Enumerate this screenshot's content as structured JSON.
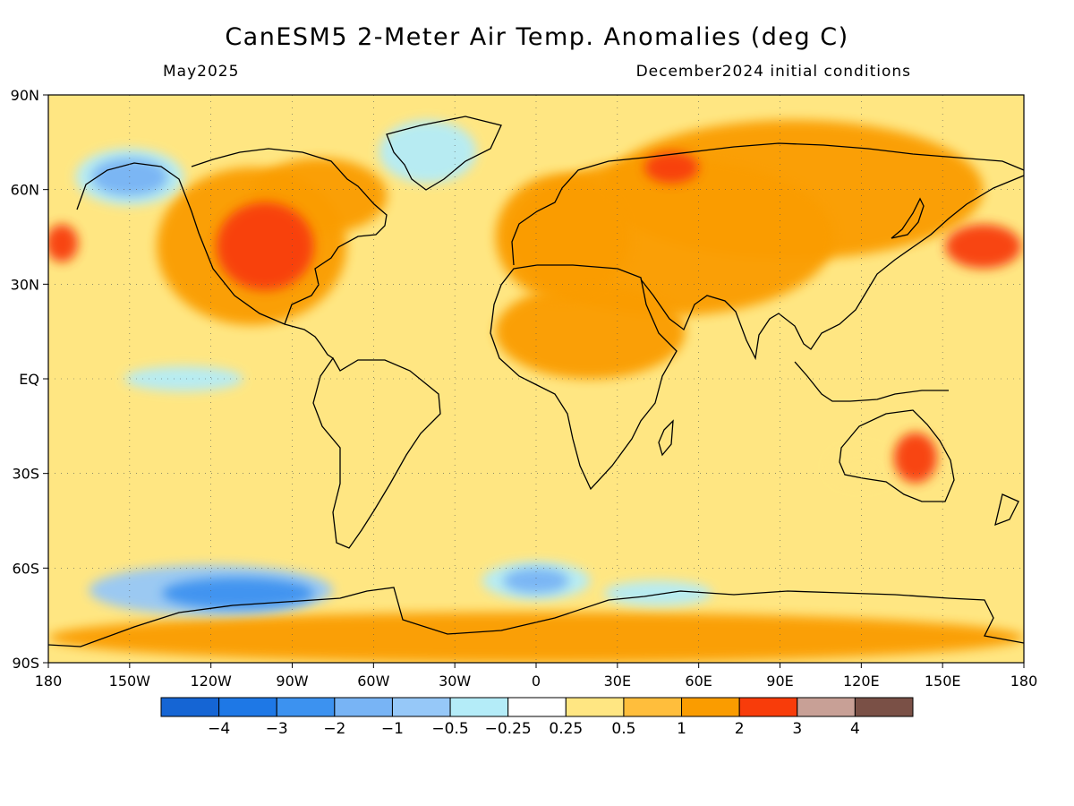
{
  "title": "CanESM5 2-Meter Air Temp. Anomalies (deg C)",
  "valid_month": "May2025",
  "init_conditions": "December2024 initial conditions",
  "chart_data": {
    "type": "heatmap",
    "variable": "2-Meter Air Temperature Anomaly",
    "units": "deg C",
    "projection": "equirectangular",
    "lon_range": [
      -180,
      180
    ],
    "lat_range": [
      -90,
      90
    ],
    "x_ticks": [
      {
        "value": -180,
        "label": "180"
      },
      {
        "value": -150,
        "label": "150W"
      },
      {
        "value": -120,
        "label": "120W"
      },
      {
        "value": -90,
        "label": "90W"
      },
      {
        "value": -60,
        "label": "60W"
      },
      {
        "value": -30,
        "label": "30W"
      },
      {
        "value": 0,
        "label": "0"
      },
      {
        "value": 30,
        "label": "30E"
      },
      {
        "value": 60,
        "label": "60E"
      },
      {
        "value": 90,
        "label": "90E"
      },
      {
        "value": 120,
        "label": "120E"
      },
      {
        "value": 150,
        "label": "150E"
      },
      {
        "value": 180,
        "label": "180"
      }
    ],
    "y_ticks": [
      {
        "value": 90,
        "label": "90N"
      },
      {
        "value": 60,
        "label": "60N"
      },
      {
        "value": 30,
        "label": "30N"
      },
      {
        "value": 0,
        "label": "EQ"
      },
      {
        "value": -30,
        "label": "30S"
      },
      {
        "value": -60,
        "label": "60S"
      },
      {
        "value": -90,
        "label": "90S"
      }
    ],
    "grid": true,
    "colorbar": {
      "colors": [
        "#1565d4",
        "#1e78e6",
        "#3c92f0",
        "#78b4f5",
        "#96c8f8",
        "#b4ecf8",
        "#ffffff",
        "#ffe682",
        "#ffbe3c",
        "#fa9c00",
        "#f83c0a",
        "#c8a096",
        "#7a5046"
      ],
      "labels": [
        "−4",
        "−3",
        "−2",
        "−1",
        "−0.5",
        "−0.25",
        "0.25",
        "0.5",
        "1",
        "2",
        "3",
        "4"
      ]
    },
    "anomaly_regions": [
      {
        "lon": -100,
        "lat": 42,
        "rx": 18,
        "ry": 14,
        "value": 2.5
      },
      {
        "lon": -105,
        "lat": 42,
        "rx": 35,
        "ry": 25,
        "value": 1.5
      },
      {
        "lon": -80,
        "lat": 58,
        "rx": 25,
        "ry": 12,
        "value": 1.5
      },
      {
        "lon": -40,
        "lat": 72,
        "rx": 18,
        "ry": 10,
        "value": -0.4
      },
      {
        "lon": -150,
        "lat": 64,
        "rx": 14,
        "ry": 6,
        "value": -1.5
      },
      {
        "lon": -150,
        "lat": 64,
        "rx": 20,
        "ry": 9,
        "value": -0.5
      },
      {
        "lon": 50,
        "lat": 45,
        "rx": 60,
        "ry": 25,
        "value": 1.5
      },
      {
        "lon": 95,
        "lat": 60,
        "rx": 70,
        "ry": 22,
        "value": 1.5
      },
      {
        "lon": 50,
        "lat": 67,
        "rx": 10,
        "ry": 5,
        "value": 2.5
      },
      {
        "lon": 165,
        "lat": 42,
        "rx": 14,
        "ry": 7,
        "value": 2.5
      },
      {
        "lon": -175,
        "lat": 43,
        "rx": 6,
        "ry": 6,
        "value": 2.5
      },
      {
        "lon": 10,
        "lat": 45,
        "rx": 25,
        "ry": 20,
        "value": 1.5
      },
      {
        "lon": 20,
        "lat": 15,
        "rx": 35,
        "ry": 15,
        "value": 1.5
      },
      {
        "lon": -110,
        "lat": -68,
        "rx": 28,
        "ry": 5,
        "value": -2.5
      },
      {
        "lon": -120,
        "lat": -67,
        "rx": 45,
        "ry": 8,
        "value": -1
      },
      {
        "lon": 0,
        "lat": -64,
        "rx": 12,
        "ry": 4,
        "value": -2
      },
      {
        "lon": 0,
        "lat": -64,
        "rx": 20,
        "ry": 6,
        "value": -0.5
      },
      {
        "lon": 45,
        "lat": -68,
        "rx": 20,
        "ry": 4,
        "value": -0.5
      },
      {
        "lon": 0,
        "lat": -82,
        "rx": 180,
        "ry": 8,
        "value": 1.5
      },
      {
        "lon": -130,
        "lat": 0,
        "rx": 22,
        "ry": 4,
        "value": -0.3
      },
      {
        "lon": 120,
        "lat": -28,
        "rx": 12,
        "ry": 6,
        "value": 0.3
      },
      {
        "lon": 140,
        "lat": -25,
        "rx": 8,
        "ry": 8,
        "value": 2.5
      }
    ]
  }
}
